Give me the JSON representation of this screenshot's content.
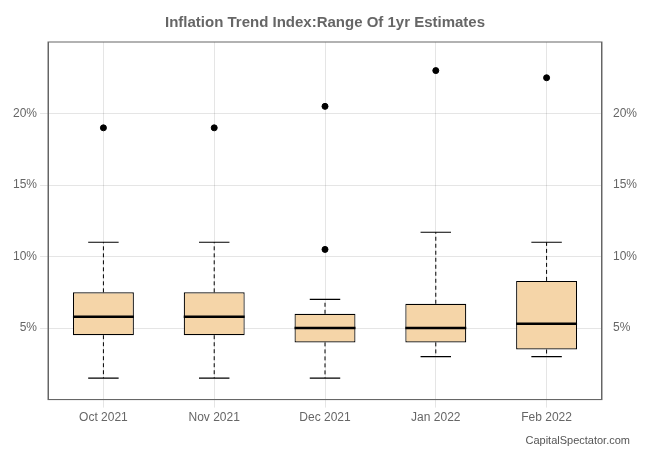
{
  "chart_data": {
    "type": "box",
    "title": "Inflation Trend Index:Range Of 1yr Estimates",
    "categories": [
      "Oct 2021",
      "Nov 2021",
      "Dec 2021",
      "Jan 2022",
      "Feb 2022"
    ],
    "boxes": [
      {
        "whislo": 1.5,
        "q1": 4.5,
        "med": 5.8,
        "q3": 7.5,
        "whishi": 11.0,
        "fliers": [
          19.0
        ]
      },
      {
        "whislo": 1.5,
        "q1": 4.5,
        "med": 5.8,
        "q3": 7.5,
        "whishi": 11.0,
        "fliers": [
          19.0
        ]
      },
      {
        "whislo": 1.5,
        "q1": 4.0,
        "med": 5.0,
        "q3": 6.0,
        "whishi": 7.0,
        "fliers": [
          10.5,
          20.5
        ]
      },
      {
        "whislo": 3.0,
        "q1": 4.0,
        "med": 5.0,
        "q3": 6.7,
        "whishi": 11.7,
        "fliers": [
          23.0
        ]
      },
      {
        "whislo": 3.0,
        "q1": 3.5,
        "med": 5.3,
        "q3": 8.3,
        "whishi": 11.0,
        "fliers": [
          22.5
        ]
      }
    ],
    "color": "#f5d5a8",
    "ylim": [
      0,
      25
    ],
    "yticks": [
      {
        "value": 5,
        "label": "5%"
      },
      {
        "value": 10,
        "label": "10%"
      },
      {
        "value": 15,
        "label": "15%"
      },
      {
        "value": 20,
        "label": "20%"
      }
    ],
    "y2lim": [
      0,
      25
    ],
    "y2ticks": [
      {
        "value": 5,
        "label": "5%"
      },
      {
        "value": 10,
        "label": "10%"
      },
      {
        "value": 15,
        "label": "15%"
      },
      {
        "value": 20,
        "label": "20%"
      }
    ],
    "grid": true,
    "annotation": "CapitalSpectator.com"
  }
}
